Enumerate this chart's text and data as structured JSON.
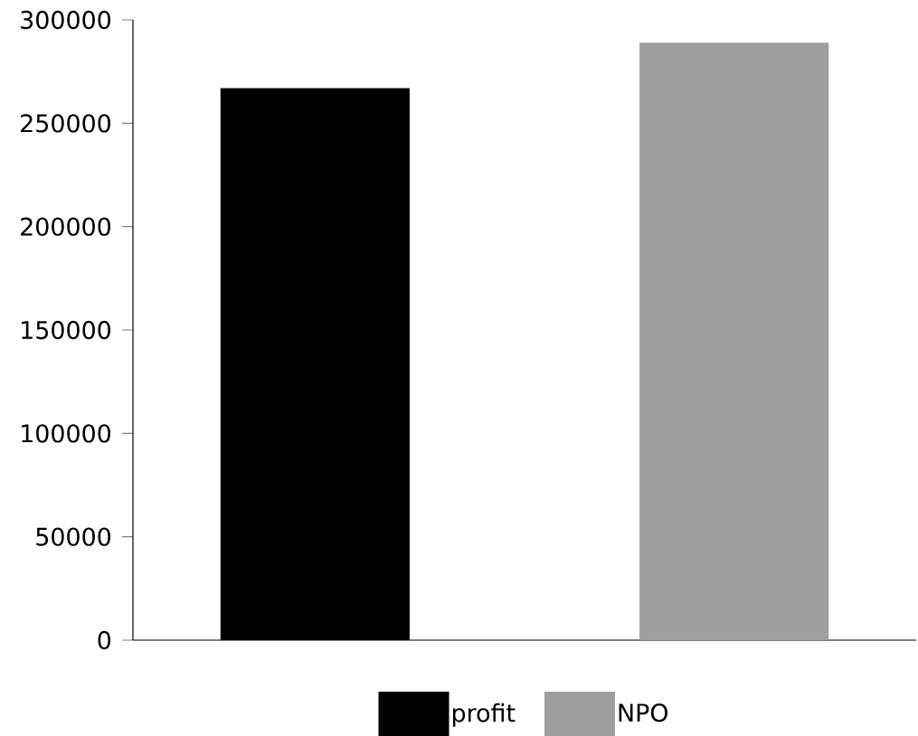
{
  "chart_data": {
    "type": "bar",
    "categories": [
      null
    ],
    "series": [
      {
        "name": "profit",
        "color": "#000000",
        "values": [
          267000
        ]
      },
      {
        "name": "NPO",
        "color": "#9e9e9e",
        "values": [
          289000
        ]
      }
    ],
    "ylim": [
      0,
      300000
    ],
    "yticks": [
      0,
      50000,
      100000,
      150000,
      200000,
      250000,
      300000
    ],
    "grid": false,
    "legend": "bottom"
  }
}
